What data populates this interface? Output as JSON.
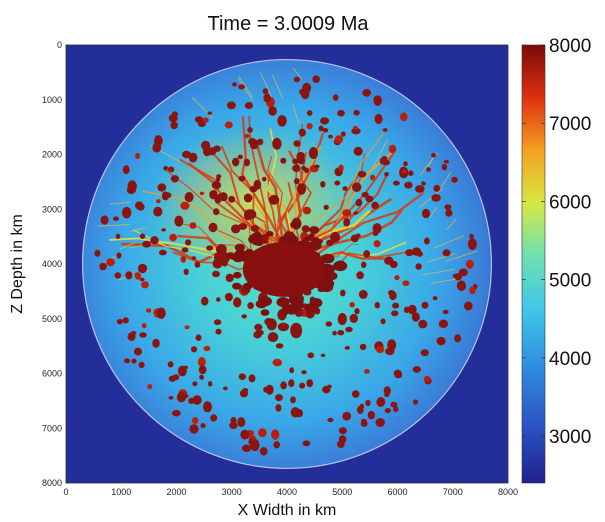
{
  "chart_data": {
    "type": "heatmap",
    "title": "Time = 3.0009 Ma",
    "xlabel": "X Width in km",
    "ylabel": "Z Depth in km",
    "xlim": [
      0,
      8000
    ],
    "ylim": [
      0,
      8000
    ],
    "y_inverted": true,
    "x_ticks": [
      0,
      1000,
      2000,
      3000,
      4000,
      5000,
      6000,
      7000,
      8000
    ],
    "y_ticks": [
      0,
      1000,
      2000,
      3000,
      4000,
      5000,
      6000,
      7000,
      8000
    ],
    "colorbar": {
      "range": [
        2400,
        8000
      ],
      "ticks": [
        3000,
        4000,
        5000,
        6000,
        7000,
        8000
      ],
      "colormap": "jet"
    },
    "planet": {
      "center_x": 4000,
      "center_z": 4000,
      "radius": 3700
    },
    "core_blob": {
      "center_x": 3950,
      "center_z": 4100,
      "radius_x": 750,
      "radius_z": 500
    },
    "background_value": 2600
  }
}
